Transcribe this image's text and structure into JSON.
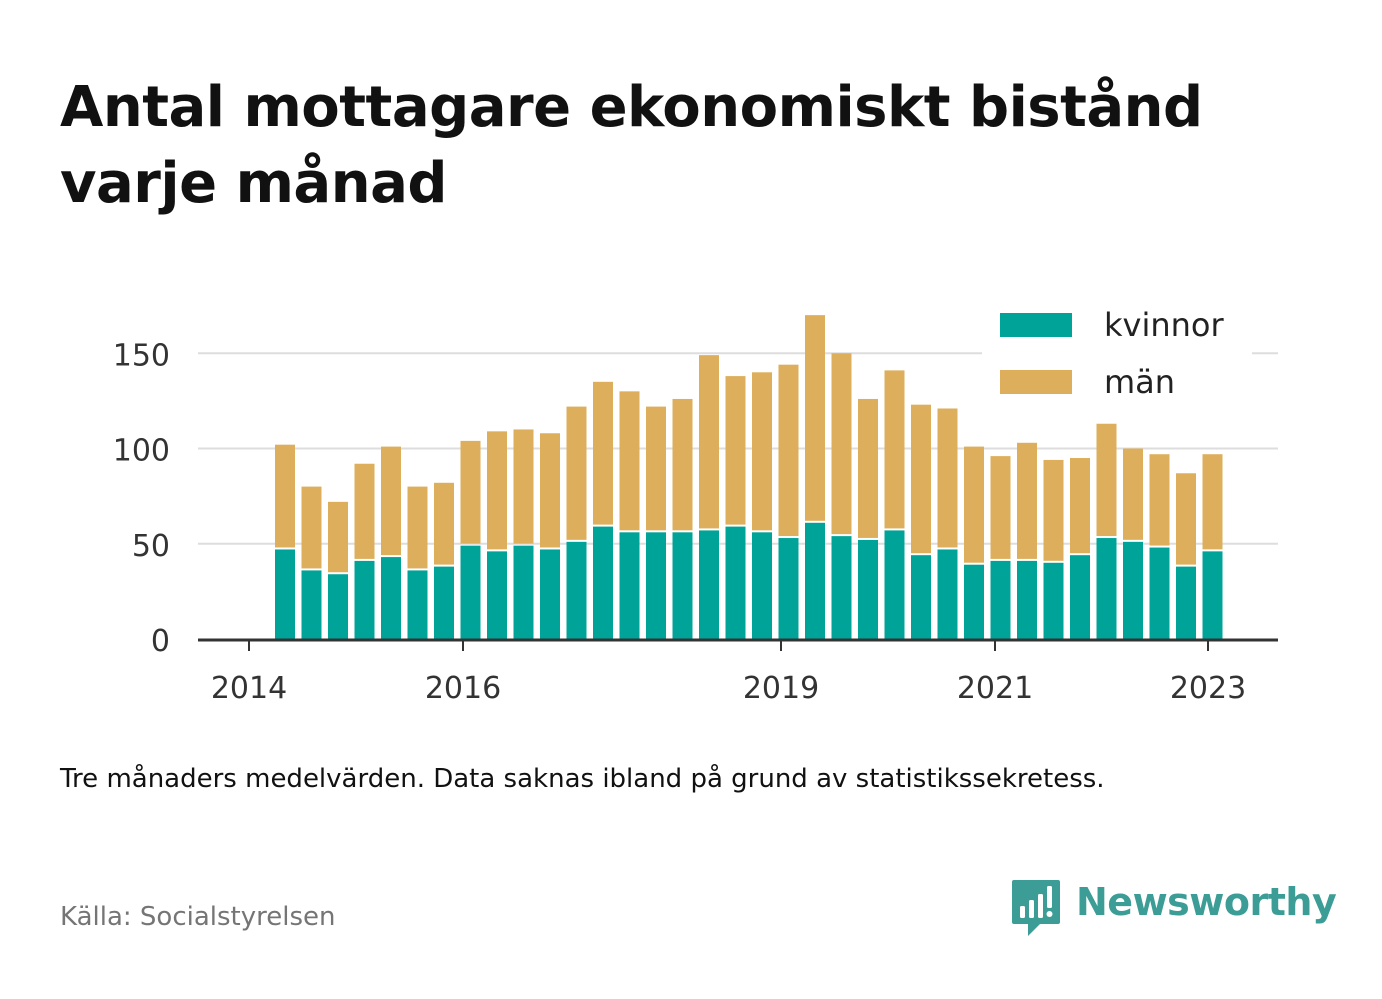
{
  "title": "Antal mottagare ekonomiskt bistånd varje månad",
  "note": "Tre månaders medelvärden. Data saknas ibland på grund av statistikssekretess.",
  "source": "Källa: Socialstyrelsen",
  "brand": {
    "name": "Newsworthy",
    "icon": "newsworthy-logo-icon",
    "color": "#3c9c96"
  },
  "colors": {
    "kvinnor": "#00a398",
    "man": "#ddae5b",
    "grid": "#dddddd",
    "axis": "#333333"
  },
  "chart_data": {
    "type": "bar",
    "stacked": true,
    "x_ticks": [
      "2014",
      "2016",
      "2019",
      "2021",
      "2023"
    ],
    "y_ticks": [
      0,
      50,
      100,
      150
    ],
    "ylim": [
      0,
      170
    ],
    "grid": true,
    "legend_position": "top-right",
    "series": [
      {
        "name": "kvinnor",
        "values": [
          47,
          36,
          34,
          41,
          43,
          36,
          38,
          49,
          46,
          49,
          47,
          51,
          59,
          56,
          56,
          56,
          57,
          59,
          56,
          53,
          61,
          54,
          52,
          57,
          44,
          47,
          39,
          41,
          41,
          40,
          44,
          53,
          51,
          48,
          38,
          46
        ]
      },
      {
        "name": "män",
        "values": [
          55,
          44,
          38,
          51,
          58,
          44,
          44,
          55,
          63,
          61,
          61,
          71,
          76,
          74,
          66,
          70,
          92,
          79,
          84,
          91,
          109,
          96,
          74,
          84,
          79,
          74,
          62,
          55,
          62,
          54,
          51,
          60,
          49,
          49,
          49,
          51
        ]
      }
    ]
  }
}
